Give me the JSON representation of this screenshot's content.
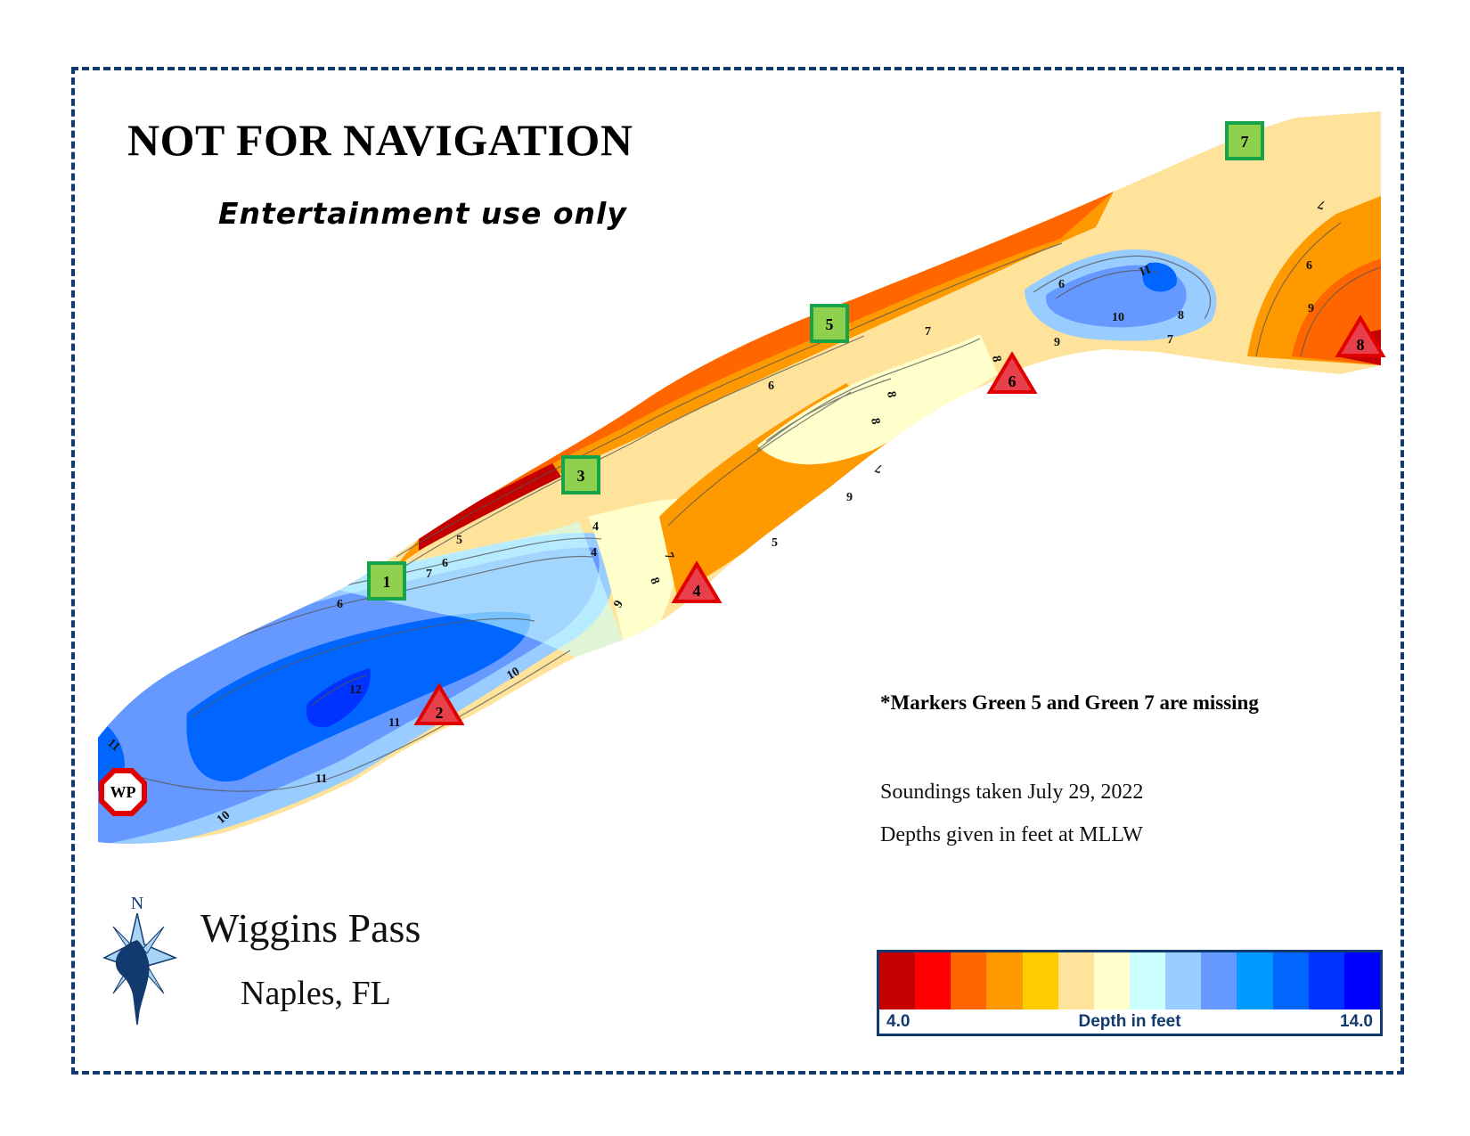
{
  "header": {
    "title": "NOT FOR NAVIGATION",
    "subtitle": "Entertainment use only"
  },
  "notes": {
    "missing_markers": "*Markers Green 5 and Green 7 are missing",
    "soundings": "Soundings taken July 29, 2022",
    "datum": "Depths given in feet at MLLW"
  },
  "place": {
    "name": "Wiggins Pass",
    "city": "Naples, FL"
  },
  "compass": {
    "north_label": "N",
    "icon": "compass-rose-icon"
  },
  "legend": {
    "min_label": "4.0",
    "max_label": "14.0",
    "label": "Depth in feet",
    "colors": [
      "#c40000",
      "#ff0000",
      "#ff6600",
      "#ff9900",
      "#ffcc00",
      "#ffe39a",
      "#ffffcc",
      "#ccffff",
      "#99ccff",
      "#6699ff",
      "#0099ff",
      "#0066ff",
      "#0033ff",
      "#0000ff"
    ]
  },
  "markers": [
    {
      "id": "wp",
      "label": "WP",
      "type": "waypoint",
      "icon": "octagon-icon"
    },
    {
      "id": "g1",
      "label": "1",
      "type": "green"
    },
    {
      "id": "r2",
      "label": "2",
      "type": "red"
    },
    {
      "id": "g3",
      "label": "3",
      "type": "green"
    },
    {
      "id": "r4",
      "label": "4",
      "type": "red"
    },
    {
      "id": "g5",
      "label": "5",
      "type": "green"
    },
    {
      "id": "r6",
      "label": "6",
      "type": "red"
    },
    {
      "id": "g7",
      "label": "7",
      "type": "green"
    },
    {
      "id": "r8",
      "label": "8",
      "type": "red"
    }
  ],
  "contour_labels": [
    "11",
    "6",
    "7",
    "6",
    "5",
    "4",
    "12",
    "11",
    "10",
    "11",
    "10",
    "9",
    "8",
    "7",
    "4",
    "5",
    "6",
    "8",
    "8",
    "7",
    "9",
    "7",
    "6",
    "8",
    "9",
    "10",
    "11",
    "8",
    "7",
    "7",
    "6",
    "9"
  ]
}
